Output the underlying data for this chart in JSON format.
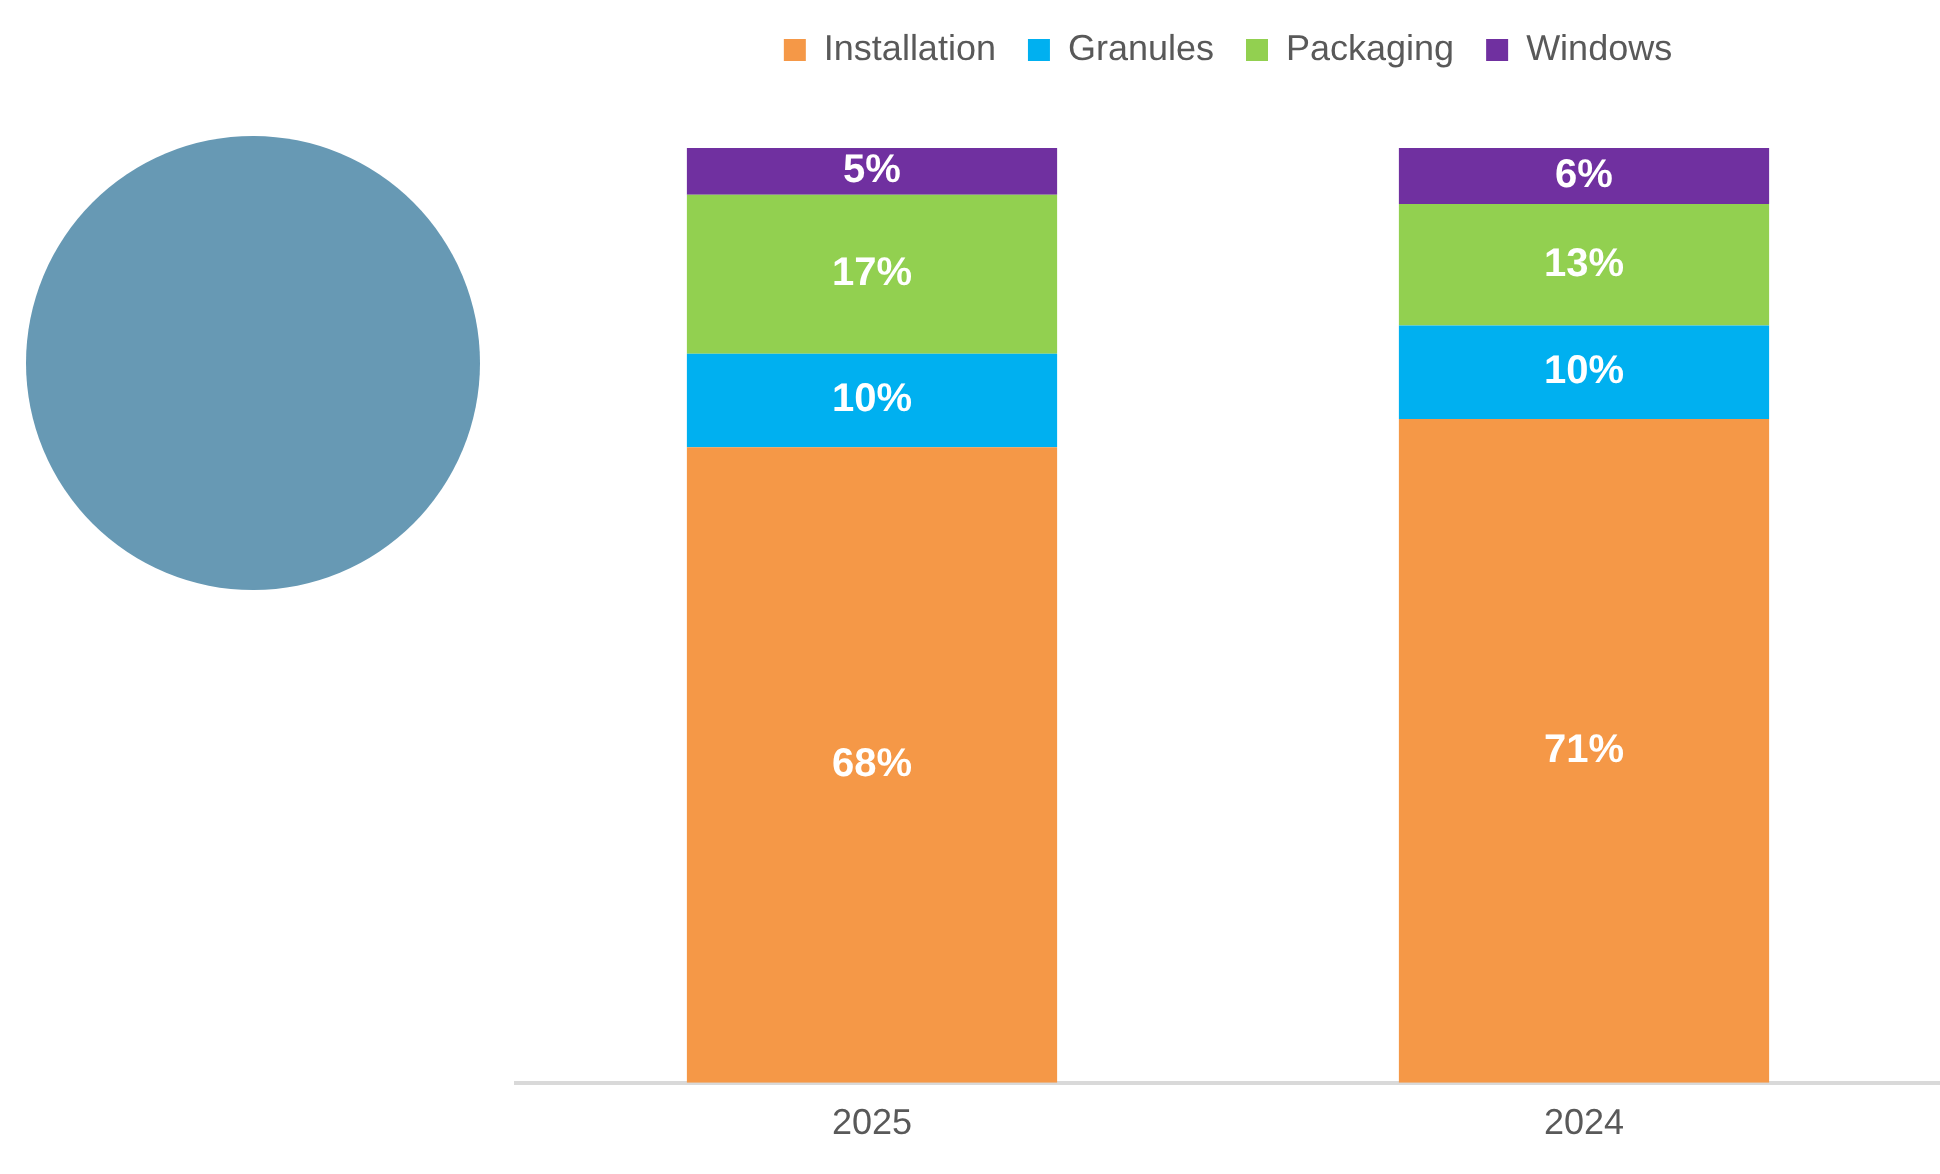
{
  "chart_data": {
    "type": "bar",
    "stacked": true,
    "categories": [
      "2025",
      "2024"
    ],
    "series": [
      {
        "name": "Installation",
        "color": "#f59847",
        "values": [
          68,
          71
        ],
        "value_labels": [
          "68%",
          "71%"
        ]
      },
      {
        "name": "Granules",
        "color": "#00b0f0",
        "values": [
          10,
          10
        ],
        "value_labels": [
          "10%",
          "10%"
        ]
      },
      {
        "name": "Packaging",
        "color": "#92d050",
        "values": [
          17,
          13
        ],
        "value_labels": [
          "17%",
          "13%"
        ]
      },
      {
        "name": "Windows",
        "color": "#7030a0",
        "values": [
          5,
          6
        ],
        "value_labels": [
          "5%",
          "6%"
        ]
      }
    ],
    "legend": "top",
    "grid": false,
    "tick_labels": "x"
  }
}
